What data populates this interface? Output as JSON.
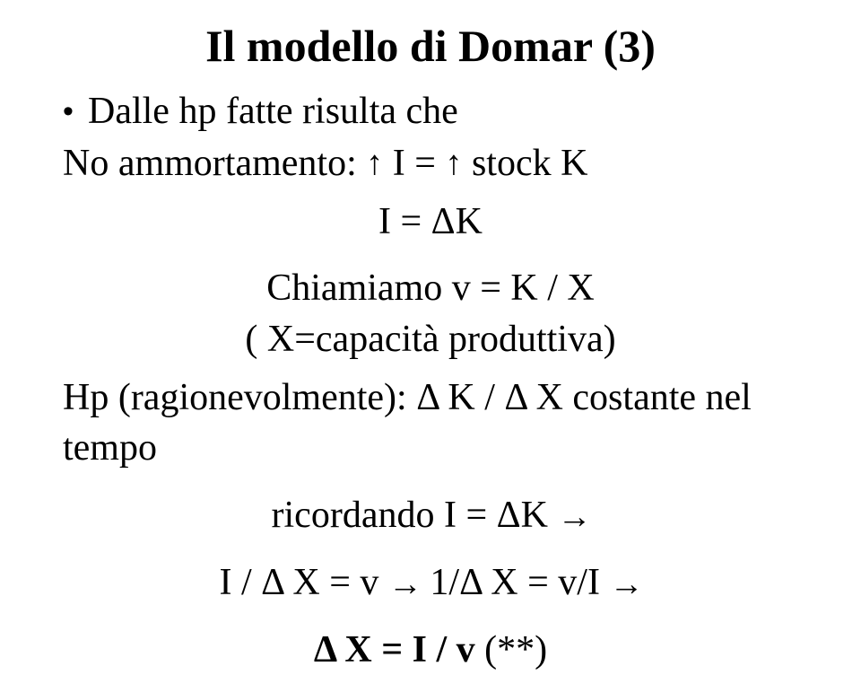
{
  "title": "Il modello di Domar (3)",
  "bullet_text": "Dalle hp fatte risulta che",
  "line_no_amort_prefix": "No ammortamento: ",
  "arrow_up": "↑",
  "line_no_amort_mid1": " I = ",
  "line_no_amort_mid2": " stock K",
  "line_i_eq_dk": "I = ΔK",
  "line_chiamiamo": "Chiamiamo v = K / X",
  "line_capacita": "( X=capacità produttiva)",
  "line_hp": "Hp (ragionevolmente): Δ K / Δ X costante nel tempo",
  "line_ricordando_prefix": "ricordando I = ΔK ",
  "arrow_right": "→",
  "line_final1_a": "I / Δ X = v ",
  "line_final1_b": " 1/Δ X = v/I ",
  "line_final2": "Δ X = I / v ",
  "line_final2_suffix": "(**)"
}
